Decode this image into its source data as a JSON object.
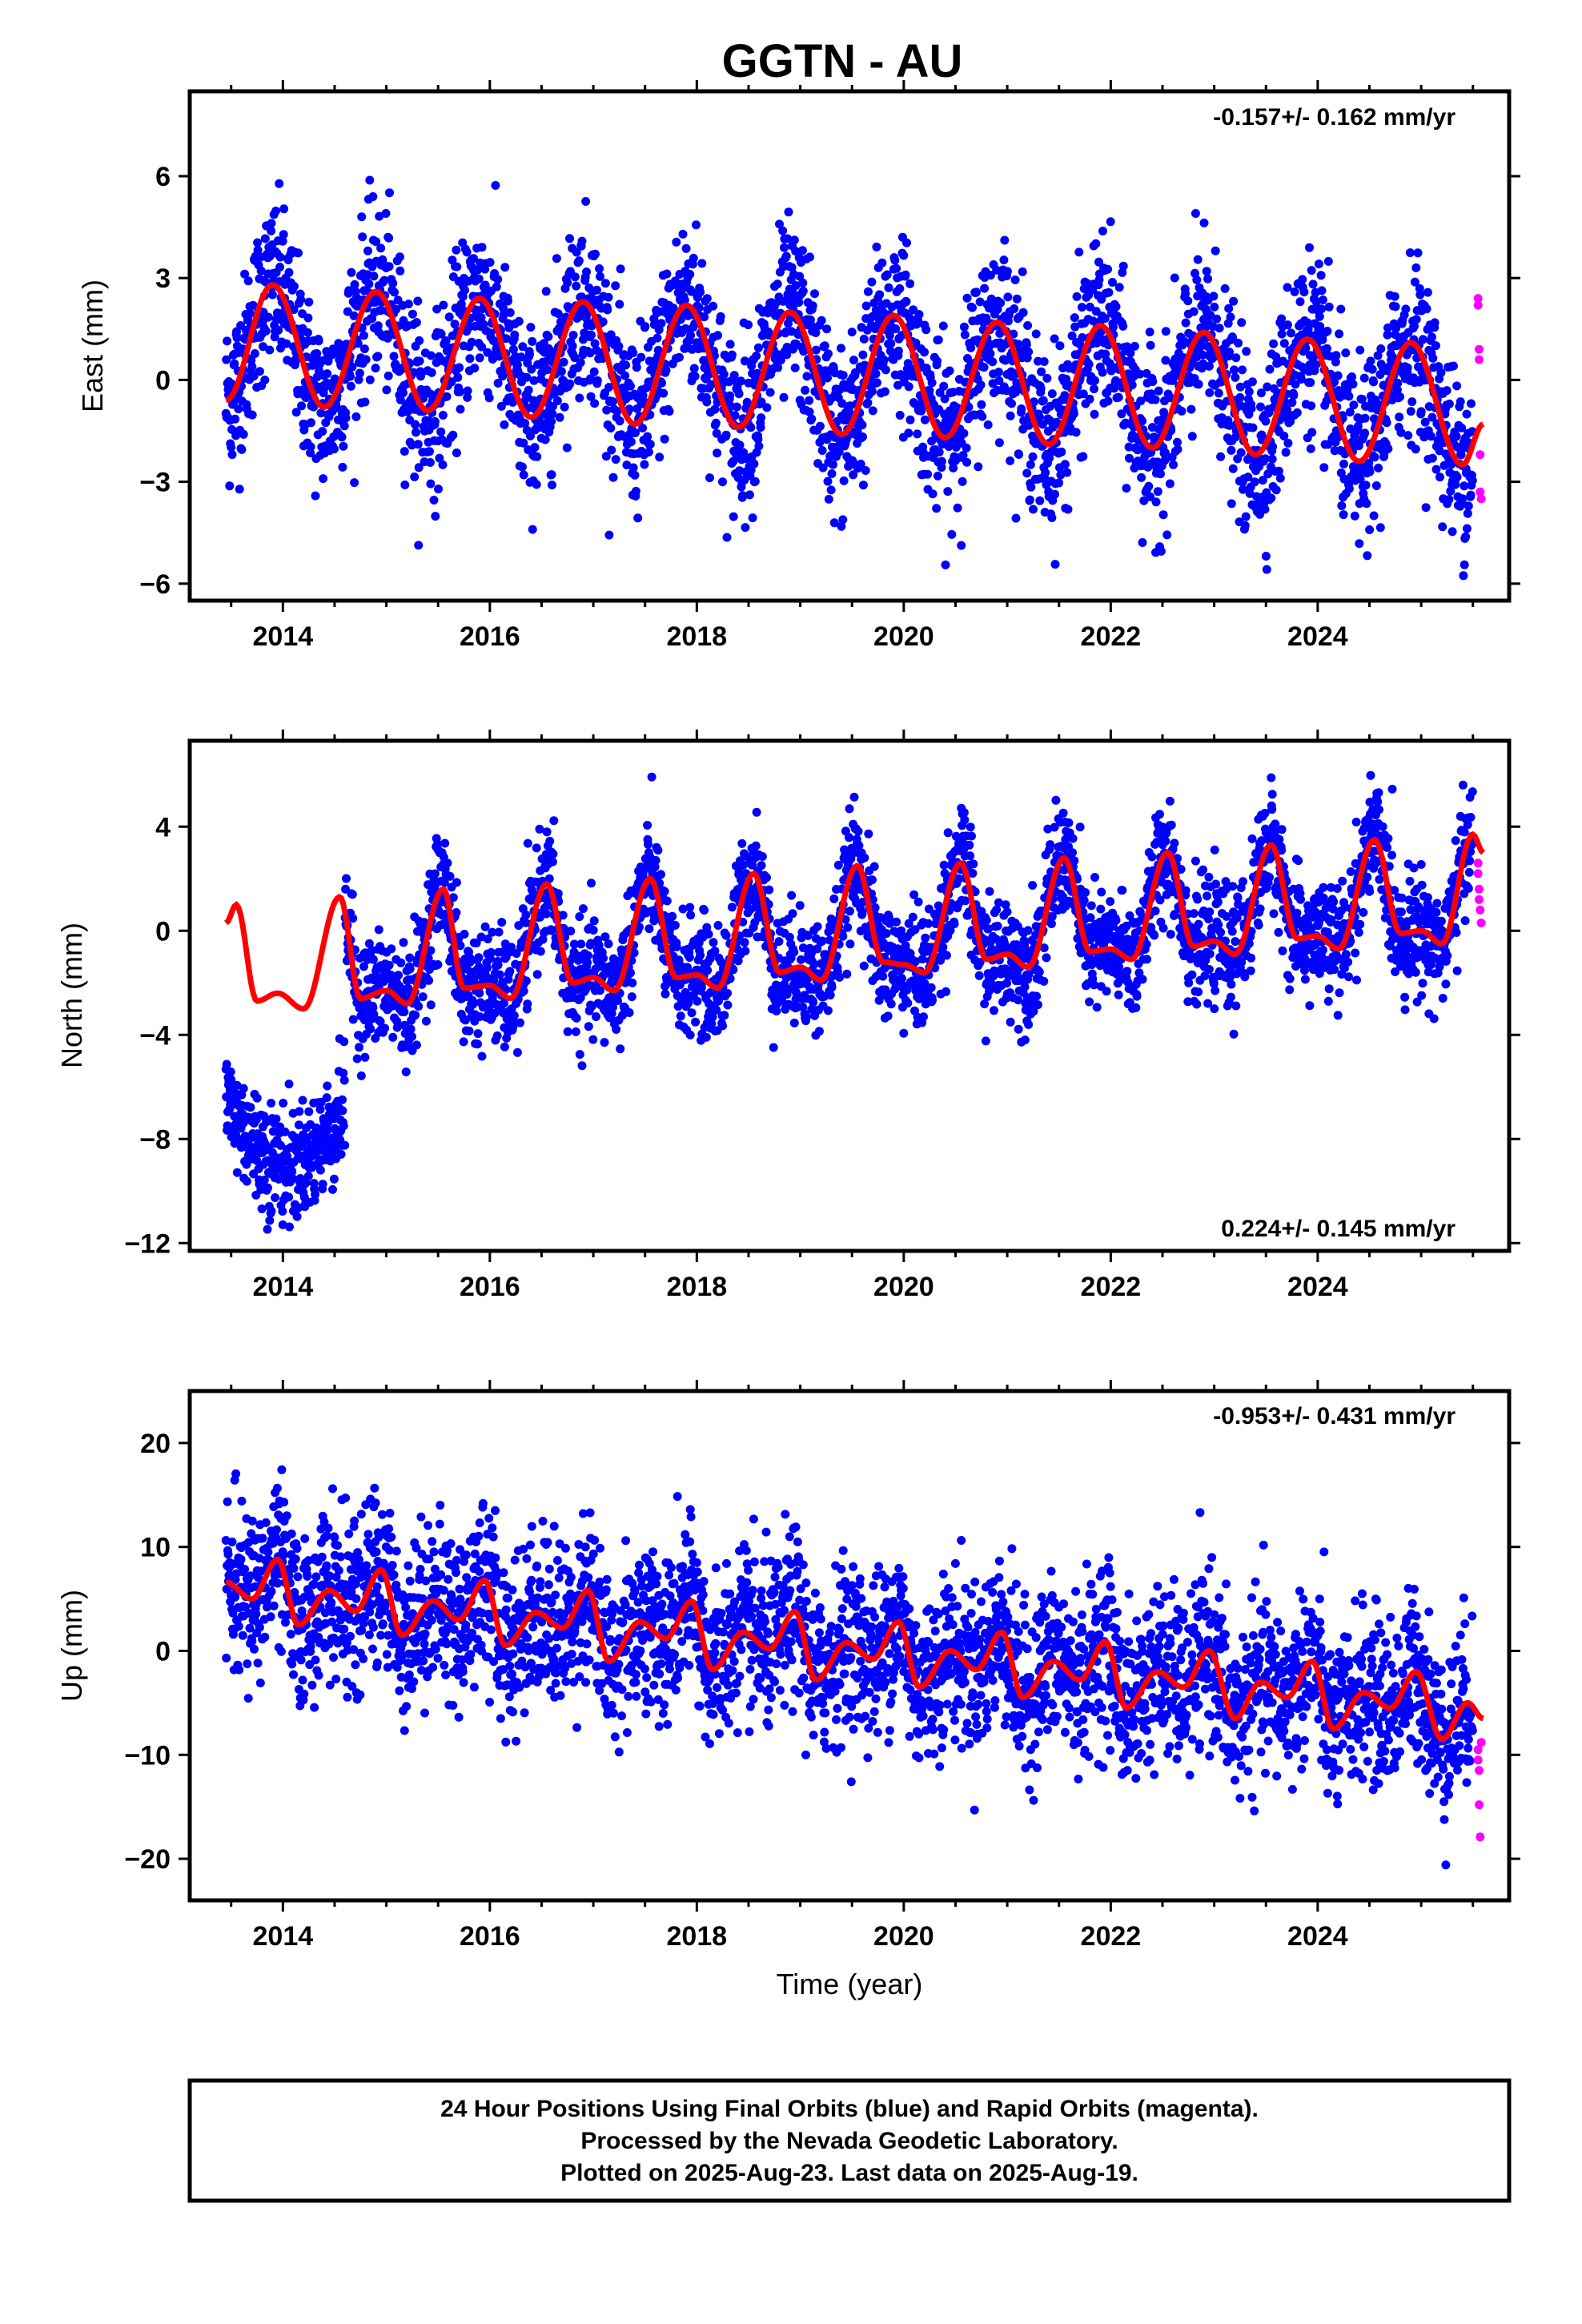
{
  "title": "GGTN - AU",
  "colors": {
    "final": "#0000ff",
    "rapid": "#ff00ff",
    "model": "#ff0000",
    "frame": "#000000"
  },
  "xlabel": "Time (year)",
  "footer": {
    "line1": "24 Hour Positions Using Final Orbits (blue) and Rapid Orbits (magenta).",
    "line2": "Processed by the Nevada Geodetic Laboratory.",
    "line3": "Plotted on 2025-Aug-23. Last data on 2025-Aug-19."
  },
  "chart_data": [
    {
      "type": "scatter",
      "name": "east",
      "ylabel": "East (mm)",
      "rate_label": "-0.157+/- 0.162 mm/yr",
      "xlim": [
        2013.1,
        2025.85
      ],
      "ylim": [
        -6.5,
        8.5
      ],
      "xticks": [
        2014,
        2016,
        2018,
        2020,
        2022,
        2024
      ],
      "xtick_labels": [
        "2014",
        "2016",
        "2018",
        "2020",
        "2022",
        "2024"
      ],
      "yticks": [
        -6,
        -3,
        0,
        3,
        6
      ],
      "ytick_labels": [
        "−6",
        "−3",
        "0",
        "3",
        "6"
      ],
      "final_orbits": {
        "x_range": [
          2013.45,
          2025.5
        ],
        "amplitude": 2.7,
        "noise": 1.25,
        "offset": 0.0,
        "trend": -0.157
      },
      "rapid_orbits": {
        "x": [
          2025.55,
          2025.55,
          2025.56,
          2025.56,
          2025.57,
          2025.57,
          2025.58
        ],
        "y": [
          2.4,
          2.2,
          0.9,
          0.6,
          -2.2,
          -3.3,
          -3.5
        ]
      },
      "model_curve": {
        "x_range": [
          2013.45,
          2025.6
        ],
        "points": [
          [
            2013.45,
            -0.6
          ],
          [
            2013.9,
            2.8
          ],
          [
            2014.4,
            -0.8
          ],
          [
            2014.9,
            2.6
          ],
          [
            2015.4,
            -0.9
          ],
          [
            2015.9,
            2.4
          ],
          [
            2016.4,
            -1.1
          ],
          [
            2016.9,
            2.3
          ],
          [
            2017.4,
            -1.3
          ],
          [
            2017.9,
            2.2
          ],
          [
            2018.4,
            -1.4
          ],
          [
            2018.9,
            2.0
          ],
          [
            2019.4,
            -1.6
          ],
          [
            2019.9,
            1.9
          ],
          [
            2020.4,
            -1.7
          ],
          [
            2020.9,
            1.7
          ],
          [
            2021.4,
            -1.9
          ],
          [
            2021.9,
            1.6
          ],
          [
            2022.4,
            -2.0
          ],
          [
            2022.9,
            1.4
          ],
          [
            2023.4,
            -2.2
          ],
          [
            2023.9,
            1.2
          ],
          [
            2024.4,
            -2.4
          ],
          [
            2024.9,
            1.1
          ],
          [
            2025.4,
            -2.5
          ],
          [
            2025.6,
            -1.3
          ]
        ]
      }
    },
    {
      "type": "scatter",
      "name": "north",
      "ylabel": "North (mm)",
      "rate_label": "0.224+/- 0.145 mm/yr",
      "xlim": [
        2013.1,
        2025.85
      ],
      "ylim": [
        -12.3,
        7.3
      ],
      "xticks": [
        2014,
        2016,
        2018,
        2020,
        2022,
        2024
      ],
      "xtick_labels": [
        "2014",
        "2016",
        "2018",
        "2020",
        "2022",
        "2024"
      ],
      "yticks": [
        -12,
        -8,
        -4,
        0,
        4
      ],
      "ytick_labels": [
        "−12",
        "−8",
        "−4",
        "0",
        "4"
      ],
      "final_orbits": {
        "x_range": [
          2013.45,
          2025.5
        ],
        "amplitude": 2.2,
        "noise": 1.1,
        "offset": 0.0,
        "trend": 0.224
      },
      "rapid_orbits": {
        "x": [
          2025.55,
          2025.55,
          2025.56,
          2025.56,
          2025.57,
          2025.58
        ],
        "y": [
          2.6,
          2.2,
          1.6,
          1.2,
          0.8,
          0.3
        ]
      },
      "model_curve": {
        "x_range": [
          2013.45,
          2025.6
        ],
        "points": [
          [
            2013.45,
            0.3
          ],
          [
            2013.55,
            1.0
          ],
          [
            2013.75,
            -2.7
          ],
          [
            2013.95,
            -2.4
          ],
          [
            2014.2,
            -3.0
          ],
          [
            2014.55,
            1.3
          ],
          [
            2014.75,
            -2.6
          ],
          [
            2015.0,
            -2.3
          ],
          [
            2015.2,
            -2.8
          ],
          [
            2015.55,
            1.6
          ],
          [
            2015.75,
            -2.2
          ],
          [
            2016.0,
            -2.1
          ],
          [
            2016.2,
            -2.6
          ],
          [
            2016.55,
            1.8
          ],
          [
            2016.8,
            -2.0
          ],
          [
            2017.0,
            -1.8
          ],
          [
            2017.2,
            -2.3
          ],
          [
            2017.55,
            2.0
          ],
          [
            2017.8,
            -1.8
          ],
          [
            2018.0,
            -1.7
          ],
          [
            2018.2,
            -2.2
          ],
          [
            2018.55,
            2.2
          ],
          [
            2018.8,
            -1.6
          ],
          [
            2019.0,
            -1.4
          ],
          [
            2019.2,
            -1.9
          ],
          [
            2019.55,
            2.5
          ],
          [
            2019.8,
            -1.2
          ],
          [
            2020.0,
            -1.3
          ],
          [
            2020.2,
            -1.6
          ],
          [
            2020.55,
            2.6
          ],
          [
            2020.8,
            -1.1
          ],
          [
            2021.0,
            -0.9
          ],
          [
            2021.2,
            -1.4
          ],
          [
            2021.55,
            2.8
          ],
          [
            2021.8,
            -0.8
          ],
          [
            2022.0,
            -0.7
          ],
          [
            2022.2,
            -1.1
          ],
          [
            2022.55,
            3.0
          ],
          [
            2022.8,
            -0.6
          ],
          [
            2023.0,
            -0.4
          ],
          [
            2023.2,
            -0.9
          ],
          [
            2023.55,
            3.3
          ],
          [
            2023.8,
            -0.3
          ],
          [
            2024.0,
            -0.2
          ],
          [
            2024.2,
            -0.7
          ],
          [
            2024.55,
            3.5
          ],
          [
            2024.8,
            -0.1
          ],
          [
            2025.0,
            0.0
          ],
          [
            2025.2,
            -0.5
          ],
          [
            2025.5,
            3.7
          ],
          [
            2025.6,
            3.0
          ]
        ]
      }
    },
    {
      "type": "scatter",
      "name": "up",
      "ylabel": "Up (mm)",
      "rate_label": "-0.953+/- 0.431 mm/yr",
      "xlim": [
        2013.1,
        2025.85
      ],
      "ylim": [
        -24,
        25
      ],
      "xticks": [
        2014,
        2016,
        2018,
        2020,
        2022,
        2024
      ],
      "xtick_labels": [
        "2014",
        "2016",
        "2018",
        "2020",
        "2022",
        "2024"
      ],
      "yticks": [
        -20,
        -10,
        0,
        10,
        20
      ],
      "ytick_labels": [
        "−20",
        "−10",
        "0",
        "10",
        "20"
      ],
      "final_orbits": {
        "x_range": [
          2013.45,
          2025.5
        ],
        "amplitude": 2.5,
        "noise": 4.0,
        "offset": 6.0,
        "trend": -0.953
      },
      "rapid_orbits": {
        "x": [
          2025.55,
          2025.55,
          2025.56,
          2025.56,
          2025.57,
          2025.58
        ],
        "y": [
          -9.5,
          -10.5,
          -11.5,
          -14.8,
          -17.9,
          -8.8
        ]
      },
      "model_curve": {
        "x_range": [
          2013.45,
          2025.6
        ],
        "points": [
          [
            2013.45,
            6.6
          ],
          [
            2013.7,
            5.0
          ],
          [
            2013.95,
            8.8
          ],
          [
            2014.15,
            2.5
          ],
          [
            2014.45,
            5.8
          ],
          [
            2014.7,
            3.8
          ],
          [
            2014.95,
            7.8
          ],
          [
            2015.15,
            1.5
          ],
          [
            2015.45,
            4.8
          ],
          [
            2015.7,
            3.0
          ],
          [
            2015.95,
            6.8
          ],
          [
            2016.15,
            0.5
          ],
          [
            2016.45,
            3.7
          ],
          [
            2016.7,
            2.2
          ],
          [
            2016.95,
            5.8
          ],
          [
            2017.15,
            -1.0
          ],
          [
            2017.45,
            2.8
          ],
          [
            2017.7,
            1.2
          ],
          [
            2017.95,
            4.8
          ],
          [
            2018.15,
            -1.8
          ],
          [
            2018.45,
            1.8
          ],
          [
            2018.7,
            0.2
          ],
          [
            2018.95,
            3.8
          ],
          [
            2019.15,
            -2.8
          ],
          [
            2019.45,
            0.8
          ],
          [
            2019.7,
            -0.8
          ],
          [
            2019.95,
            2.8
          ],
          [
            2020.15,
            -3.5
          ],
          [
            2020.45,
            0.0
          ],
          [
            2020.7,
            -1.8
          ],
          [
            2020.95,
            1.8
          ],
          [
            2021.15,
            -4.5
          ],
          [
            2021.45,
            -1.0
          ],
          [
            2021.7,
            -2.8
          ],
          [
            2021.95,
            0.9
          ],
          [
            2022.15,
            -5.5
          ],
          [
            2022.45,
            -2.0
          ],
          [
            2022.7,
            -3.5
          ],
          [
            2022.95,
            0.0
          ],
          [
            2023.2,
            -6.5
          ],
          [
            2023.45,
            -3.0
          ],
          [
            2023.7,
            -4.5
          ],
          [
            2023.95,
            -1.0
          ],
          [
            2024.15,
            -7.5
          ],
          [
            2024.45,
            -4.0
          ],
          [
            2024.7,
            -5.5
          ],
          [
            2024.95,
            -2.0
          ],
          [
            2025.2,
            -8.5
          ],
          [
            2025.45,
            -5.0
          ],
          [
            2025.6,
            -6.5
          ]
        ]
      }
    }
  ]
}
